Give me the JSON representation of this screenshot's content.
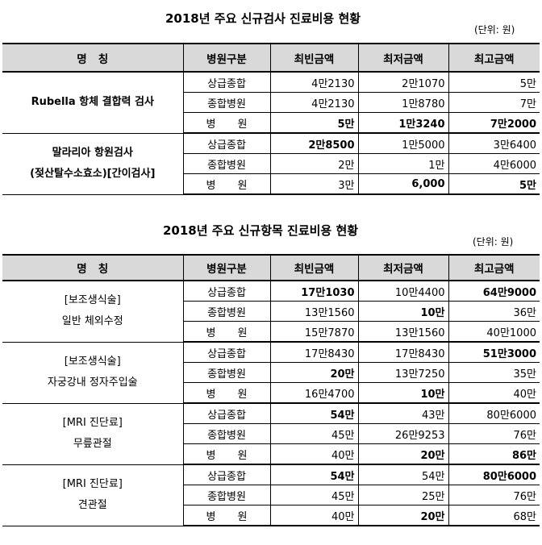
{
  "table1": {
    "title": "2018년 주요 신규검사 진료비용 현황",
    "unit": "(단위: 원)",
    "headers": [
      "명   칭",
      "병원구분",
      "최빈금액",
      "최저금액",
      "최고금액"
    ],
    "groups": [
      {
        "name": "Rubella 항체 결합력 검사",
        "rows": [
          {
            "kind": "상급종합",
            "mode": "4만2130",
            "min": "2만1070",
            "max": "5만"
          },
          {
            "kind": "종합병원",
            "mode": "4만2130",
            "min": "1만8780",
            "max": "7만"
          },
          {
            "kind": "병   원",
            "mode": "5만",
            "min": "1만3240",
            "max": "7만2000"
          }
        ]
      },
      {
        "name_line1": "말라리아 항원검사",
        "name_line2": "(젖산탈수소효소)[간이검사]",
        "rows": [
          {
            "kind": "상급종합",
            "mode": "2만8500",
            "min": "1만5000",
            "max": "3만6400"
          },
          {
            "kind": "종합병원",
            "mode": "2만",
            "min": "1만",
            "max": "4만6000"
          },
          {
            "kind": "병   원",
            "mode": "3만",
            "min": "6,000",
            "max": "5만"
          }
        ]
      }
    ]
  },
  "table2": {
    "title": "2018년 주요 신규항목 진료비용 현황",
    "unit": "(단위: 원)",
    "headers": [
      "명   칭",
      "병원구분",
      "최빈금액",
      "최저금액",
      "최고금액"
    ],
    "groups": [
      {
        "name_line1": "[보조생식술]",
        "name_line2": "일반 체외수정",
        "rows": [
          {
            "kind": "상급종합",
            "mode": "17만1030",
            "min": "10만4400",
            "max": "64만9000"
          },
          {
            "kind": "종합병원",
            "mode": "13만1560",
            "min": "10만",
            "max": "36만"
          },
          {
            "kind": "병   원",
            "mode": "15만7870",
            "min": "13만1560",
            "max": "40만1000"
          }
        ]
      },
      {
        "name_line1": "[보조생식술]",
        "name_line2": "자궁강내 정자주입술",
        "rows": [
          {
            "kind": "상급종합",
            "mode": "17만8430",
            "min": "17만8430",
            "max": "51만3000"
          },
          {
            "kind": "종합병원",
            "mode": "20만",
            "min": "13만7250",
            "max": "35만"
          },
          {
            "kind": "병   원",
            "mode": "16만4700",
            "min": "10만",
            "max": "40만"
          }
        ]
      },
      {
        "name_line1": "[MRI 진단료]",
        "name_line2": "무릎관절",
        "rows": [
          {
            "kind": "상급종합",
            "mode": "54만",
            "min": "43만",
            "max": "80만6000"
          },
          {
            "kind": "종합병원",
            "mode": "45만",
            "min": "26만9253",
            "max": "76만"
          },
          {
            "kind": "병   원",
            "mode": "40만",
            "min": "20만",
            "max": "86만"
          }
        ]
      },
      {
        "name_line1": "[MRI 진단료]",
        "name_line2": "견관절",
        "rows": [
          {
            "kind": "상급종합",
            "mode": "54만",
            "min": "54만",
            "max": "80만6000"
          },
          {
            "kind": "종합병원",
            "mode": "45만",
            "min": "25만",
            "max": "76만"
          },
          {
            "kind": "병   원",
            "mode": "40만",
            "min": "20만",
            "max": "68만"
          }
        ]
      }
    ]
  }
}
